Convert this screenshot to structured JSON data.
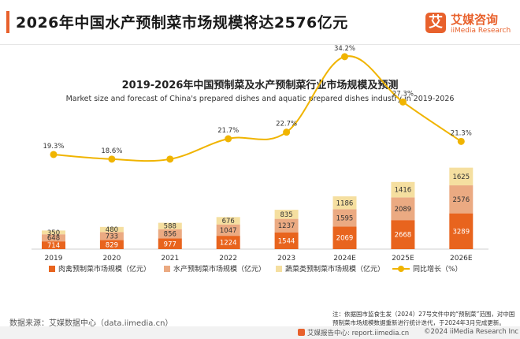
{
  "header": {
    "title": "2026年中国水产预制菜市场规模将达2576亿元",
    "logo_mark": "艾",
    "logo_cn": "艾媒咨询",
    "logo_en": "iiMedia Research"
  },
  "colors": {
    "accent": "#e8612c",
    "meat": "#e8641e",
    "aquatic": "#ebaa82",
    "veg": "#f5dfa0",
    "growth_line": "#f0b400"
  },
  "chart_data": {
    "type": "bar",
    "stacked": true,
    "title": "2019-2026年中国预制菜及水产预制菜行业市场规模及预测",
    "subtitle": "Market size and forecast of China's prepared dishes and aquatic prepared dishes industry in 2019-2026",
    "categories": [
      "2019",
      "2020",
      "2021",
      "2022",
      "2023",
      "2024E",
      "2025E",
      "2026E"
    ],
    "series": [
      {
        "name": "肉禽预制菜市场规模（亿元）",
        "type": "bar",
        "values": [
          714,
          829,
          977,
          1224,
          1544,
          2069,
          2668,
          3289
        ]
      },
      {
        "name": "水产预制菜市场规模（亿元）",
        "type": "bar",
        "values": [
          648,
          733,
          856,
          1047,
          1237,
          1595,
          2089,
          2576
        ]
      },
      {
        "name": "蔬菜类预制菜市场规模（亿元）",
        "type": "bar",
        "values": [
          350,
          480,
          588,
          676,
          835,
          1186,
          1416,
          1625
        ]
      },
      {
        "name": "同比增长（%）",
        "type": "line",
        "axis": "secondary",
        "values": [
          19.3,
          18.6,
          18.6,
          21.7,
          22.7,
          34.2,
          27.3,
          21.3
        ],
        "labels": [
          "19.3%",
          "18.6%",
          "",
          "21.7%",
          "22.7%",
          "34.2%",
          "27.3%",
          "21.3%"
        ]
      }
    ],
    "legend_position": "bottom",
    "grid": false
  },
  "note": "注：依据国市监食生发（2024）27号文件中的“预制菜”范围，对中国预制菜市场规模数据重新进行统计迭代，于2024年3月完成更新。",
  "source": "数据来源：艾媒数据中心（data.iimedia.cn）",
  "footer": {
    "center": "艾媒报告中心: report.iimedia.cn",
    "right": "©2024  iiMedia Research  Inc"
  }
}
